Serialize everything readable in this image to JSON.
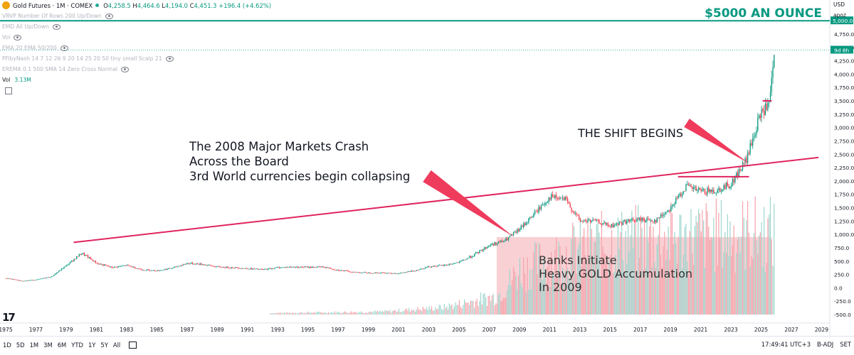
{
  "legend": {
    "symbol": "Gold Futures · 1M · COMEX",
    "ohlc": {
      "o_label": "O",
      "o": "4,258.5",
      "h_label": "H",
      "h": "4,464.6",
      "l_label": "L",
      "l": "4,194.0",
      "c_label": "C",
      "c": "4,451.3",
      "chg": "+196.4 (+4.62%)"
    },
    "indicators": [
      "VRVP Number Of Rows 200 Up/Down",
      "EMD All Up/Down",
      "Vol",
      "EMA 20 EMA 50/200",
      "PFibyNash 14 7 12 26 9 20 14 25 20 50 tiny small Scalp 21",
      "EREMA 0.1 500 SMA 14 Zero Cross Normal"
    ],
    "vol_label": "Vol",
    "vol_value": "3.13M"
  },
  "price_scale": {
    "currency": "USD",
    "mode": "apoz",
    "ticks": [
      "4,750.0",
      "4,500.0",
      "4,250.0",
      "4,000.0",
      "3,750.0",
      "3,500.0",
      "3,250.0",
      "3,000.0",
      "2,750.0",
      "2,500.0",
      "2,250.0",
      "2,000.0",
      "1,750.0",
      "1,500.0",
      "1,250.0",
      "1,000.0",
      "750.0",
      "500.0",
      "250.0",
      "0.0",
      "-250.0",
      "-500.0"
    ],
    "tag_5000": "5,000.0",
    "tag_countdown": "9d 8h"
  },
  "time_axis": {
    "ticks": [
      "1975",
      "1977",
      "1979",
      "1981",
      "1983",
      "1985",
      "1987",
      "1989",
      "1991",
      "1993",
      "1995",
      "1997",
      "1999",
      "2001",
      "2003",
      "2005",
      "2007",
      "2009",
      "2011",
      "2013",
      "2015",
      "2017",
      "2019",
      "2021",
      "2023",
      "2025",
      "2027",
      "2029"
    ]
  },
  "annotations": {
    "target": "$5000 AN OUNCE",
    "crash_lines": [
      "The 2008 Major Markets Crash",
      "Across the Board",
      "3rd World currencies begin collapsing"
    ],
    "shift": "THE SHIFT BEGINS",
    "banks_lines": [
      "Banks Initiate",
      "Heavy GOLD Accumulation",
      "In 2009"
    ]
  },
  "bottom_bar": {
    "timeframes": [
      "1D",
      "5D",
      "1M",
      "3M",
      "6M",
      "YTD",
      "1Y",
      "5Y",
      "All"
    ],
    "clock": "17:49:41 UTC+3",
    "adj": "B-ADJ",
    "set": "SET"
  },
  "colors": {
    "up": "#089981",
    "down": "#f23645",
    "trendline": "#e0245e",
    "target": "#089981",
    "highlight": "#f8c8cc"
  },
  "chart_data": {
    "type": "candlestick",
    "title": "Gold Futures · 1M · COMEX",
    "xlabel": "",
    "ylabel": "USD",
    "xlim": [
      1975,
      2029.5
    ],
    "ylim": [
      -500,
      4750
    ],
    "grid": false,
    "series": [
      {
        "name": "Gold Futures",
        "points": [
          [
            1975,
            180
          ],
          [
            1976,
            130
          ],
          [
            1977,
            150
          ],
          [
            1978,
            210
          ],
          [
            1979,
            420
          ],
          [
            1980,
            650
          ],
          [
            1981,
            460
          ],
          [
            1982,
            380
          ],
          [
            1983,
            420
          ],
          [
            1984,
            340
          ],
          [
            1985,
            320
          ],
          [
            1986,
            370
          ],
          [
            1987,
            460
          ],
          [
            1988,
            440
          ],
          [
            1989,
            390
          ],
          [
            1990,
            380
          ],
          [
            1991,
            360
          ],
          [
            1992,
            340
          ],
          [
            1993,
            380
          ],
          [
            1994,
            390
          ],
          [
            1995,
            385
          ],
          [
            1996,
            390
          ],
          [
            1997,
            330
          ],
          [
            1998,
            295
          ],
          [
            1999,
            280
          ],
          [
            2000,
            280
          ],
          [
            2001,
            270
          ],
          [
            2002,
            320
          ],
          [
            2003,
            400
          ],
          [
            2004,
            420
          ],
          [
            2005,
            480
          ],
          [
            2006,
            620
          ],
          [
            2007,
            800
          ],
          [
            2008,
            880
          ],
          [
            2009,
            1100
          ],
          [
            2010,
            1400
          ],
          [
            2011,
            1700
          ],
          [
            2012,
            1650
          ],
          [
            2013,
            1250
          ],
          [
            2014,
            1250
          ],
          [
            2015,
            1150
          ],
          [
            2016,
            1240
          ],
          [
            2017,
            1280
          ],
          [
            2018,
            1260
          ],
          [
            2019,
            1500
          ],
          [
            2020,
            1900
          ],
          [
            2021,
            1800
          ],
          [
            2022,
            1820
          ],
          [
            2023,
            1950
          ],
          [
            2024,
            2400
          ],
          [
            2025,
            3300
          ],
          [
            2025.5,
            3400
          ],
          [
            2025.9,
            4451
          ]
        ]
      }
    ],
    "volume": {
      "name": "Vol",
      "start_year": 1992.5,
      "profile": [
        [
          1992.5,
          20
        ],
        [
          2000,
          40
        ],
        [
          2004,
          100
        ],
        [
          2007.5,
          250
        ],
        [
          2009,
          600
        ],
        [
          2013,
          900
        ],
        [
          2016,
          1000
        ],
        [
          2020,
          1050
        ],
        [
          2025,
          1100
        ]
      ]
    },
    "levels": [
      {
        "label": "$5000 AN OUNCE",
        "value": 5000
      }
    ],
    "trendline": {
      "from": [
        1979.5,
        850
      ],
      "to": [
        2028.8,
        2440
      ]
    },
    "segments": [
      {
        "from": [
          2019.5,
          2080
        ],
        "to": [
          2024.2,
          2080
        ]
      },
      {
        "from": [
          2025.1,
          3500
        ],
        "to": [
          2025.7,
          3500
        ]
      }
    ],
    "highlight_box": {
      "x": [
        2007.5,
        2025.7
      ],
      "y": [
        -500,
        950
      ]
    }
  }
}
